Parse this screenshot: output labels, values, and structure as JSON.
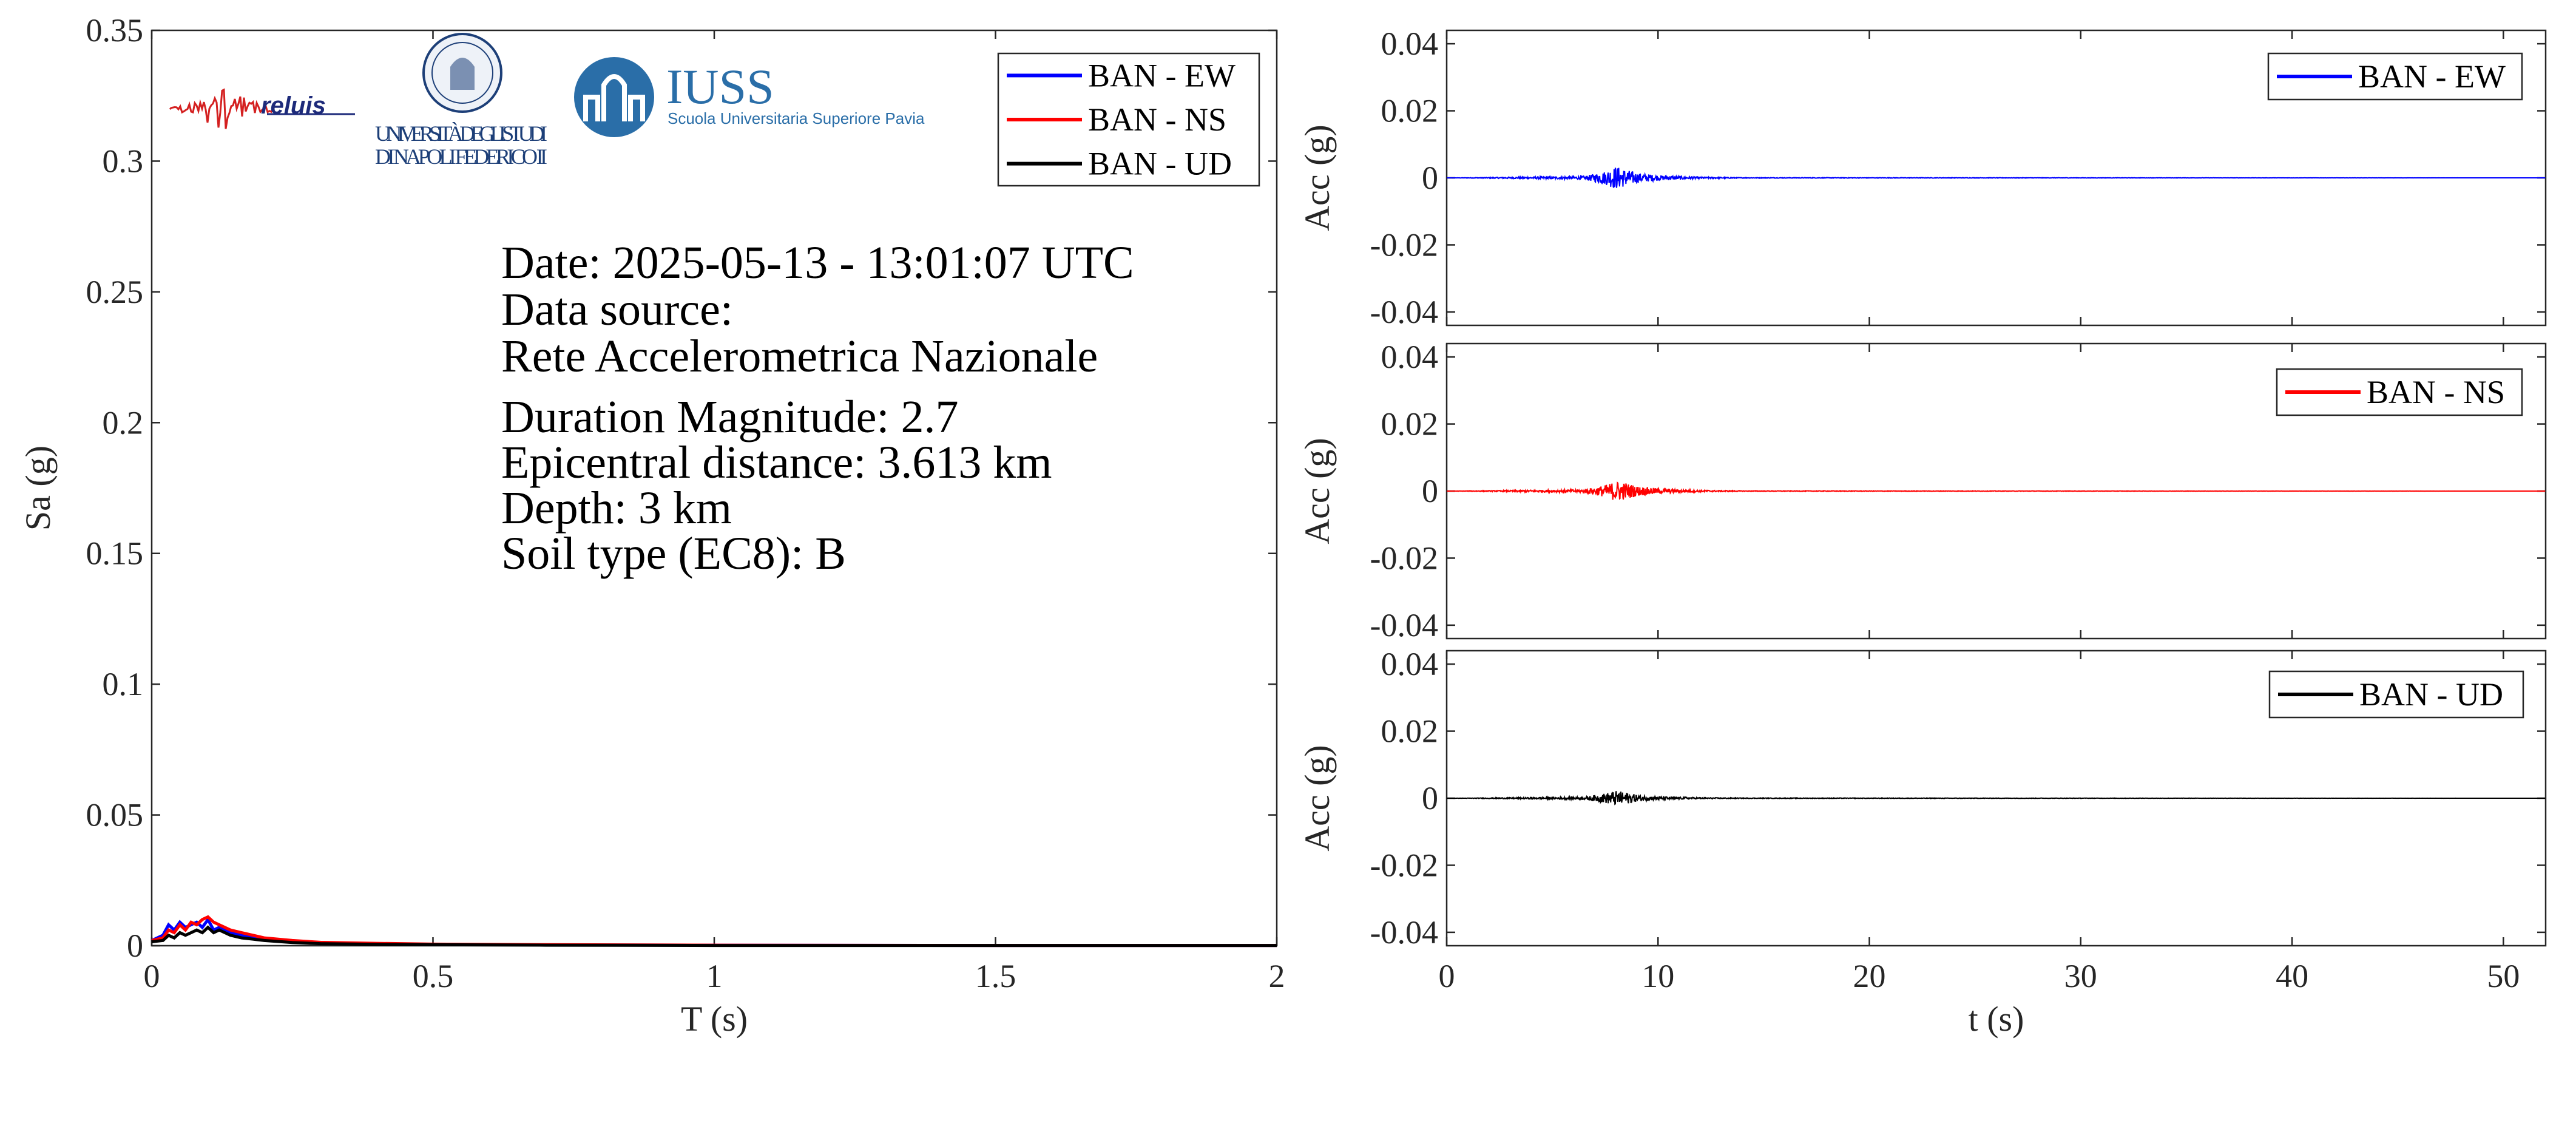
{
  "logos": {
    "reluis": "reluis",
    "unina_line1": "UNIVERSITÀ DEGLI STUDI",
    "unina_line2": "DI NAPOLI FEDERICO II",
    "iuss_name": "IUSS",
    "iuss_sub": "Scuola Universitaria Superiore Pavia"
  },
  "info": {
    "date": "Date: 2025-05-13 - 13:01:07 UTC",
    "source_label": "Data source:",
    "source_value": "Rete Accelerometrica Nazionale",
    "magnitude": "Duration Magnitude: 2.7",
    "distance": "Epicentral distance: 3.613 km",
    "depth": "Depth: 3 km",
    "soil": "Soil type (EC8): B"
  },
  "colors": {
    "ew": "#0000ff",
    "ns": "#ff0000",
    "ud": "#000000",
    "axis": "#262626"
  },
  "chart_data": [
    {
      "type": "line",
      "xlabel": "T (s)",
      "ylabel": "Sa (g)",
      "xlim": [
        0,
        2
      ],
      "ylim": [
        0,
        0.35
      ],
      "xticks": [
        0,
        0.5,
        1,
        1.5,
        2
      ],
      "xtick_labels": [
        "0",
        "0.5",
        "1",
        "1.5",
        "2"
      ],
      "yticks": [
        0,
        0.05,
        0.1,
        0.15,
        0.2,
        0.25,
        0.3,
        0.35
      ],
      "ytick_labels": [
        "0",
        "0.05",
        "0.1",
        "0.15",
        "0.2",
        "0.25",
        "0.3",
        "0.35"
      ],
      "legend_position": "top-right",
      "series": [
        {
          "name": "BAN - EW",
          "color": "#0000ff",
          "x": [
            0,
            0.02,
            0.03,
            0.04,
            0.05,
            0.06,
            0.07,
            0.08,
            0.09,
            0.1,
            0.11,
            0.12,
            0.14,
            0.16,
            0.18,
            0.2,
            0.25,
            0.3,
            0.4,
            0.5,
            0.7,
            1.0,
            1.5,
            2.0
          ],
          "y": [
            0.002,
            0.004,
            0.008,
            0.006,
            0.009,
            0.007,
            0.008,
            0.009,
            0.007,
            0.01,
            0.006,
            0.007,
            0.005,
            0.004,
            0.003,
            0.0025,
            0.0015,
            0.001,
            0.0007,
            0.0005,
            0.0003,
            0.0002,
            0.0001,
            0.0001
          ]
        },
        {
          "name": "BAN - NS",
          "color": "#ff0000",
          "x": [
            0,
            0.02,
            0.03,
            0.04,
            0.05,
            0.06,
            0.07,
            0.08,
            0.09,
            0.1,
            0.11,
            0.12,
            0.14,
            0.16,
            0.18,
            0.2,
            0.25,
            0.3,
            0.4,
            0.5,
            0.7,
            1.0,
            1.5,
            2.0
          ],
          "y": [
            0.002,
            0.003,
            0.006,
            0.005,
            0.008,
            0.006,
            0.009,
            0.008,
            0.01,
            0.011,
            0.009,
            0.008,
            0.006,
            0.005,
            0.004,
            0.003,
            0.002,
            0.0013,
            0.0009,
            0.0006,
            0.0004,
            0.0002,
            0.0001,
            0.0001
          ]
        },
        {
          "name": "BAN - UD",
          "color": "#000000",
          "x": [
            0,
            0.02,
            0.03,
            0.04,
            0.05,
            0.06,
            0.07,
            0.08,
            0.09,
            0.1,
            0.11,
            0.12,
            0.14,
            0.16,
            0.18,
            0.2,
            0.25,
            0.3,
            0.4,
            0.5,
            0.7,
            1.0,
            1.5,
            2.0
          ],
          "y": [
            0.0015,
            0.002,
            0.004,
            0.003,
            0.005,
            0.004,
            0.005,
            0.006,
            0.005,
            0.007,
            0.005,
            0.006,
            0.004,
            0.003,
            0.0025,
            0.002,
            0.0012,
            0.0008,
            0.0005,
            0.0004,
            0.0002,
            0.0001,
            0.0001,
            0.0001
          ]
        }
      ]
    },
    {
      "type": "line",
      "xlabel": "",
      "ylabel": "Acc (g)",
      "xlim": [
        0,
        52
      ],
      "ylim": [
        -0.044,
        0.044
      ],
      "xticks": [
        0,
        10,
        20,
        30,
        40,
        50
      ],
      "yticks": [
        -0.04,
        -0.02,
        0,
        0.02,
        0.04
      ],
      "ytick_labels": [
        "-0.04",
        "-0.02",
        "0",
        "0.02",
        "0.04"
      ],
      "legend_position": "top-right",
      "series": [
        {
          "name": "BAN - EW",
          "color": "#0000ff",
          "x": [
            0,
            6.5,
            7.5,
            8.0,
            8.5,
            9.0,
            10.0,
            12.0,
            14.0,
            52.0
          ],
          "y": [
            0,
            0.0005,
            0.002,
            0.0035,
            0.0025,
            0.0015,
            0.0008,
            0.0003,
            0.0001,
            0
          ]
        }
      ]
    },
    {
      "type": "line",
      "xlabel": "",
      "ylabel": "Acc (g)",
      "xlim": [
        0,
        52
      ],
      "ylim": [
        -0.044,
        0.044
      ],
      "xticks": [
        0,
        10,
        20,
        30,
        40,
        50
      ],
      "yticks": [
        -0.04,
        -0.02,
        0,
        0.02,
        0.04
      ],
      "ytick_labels": [
        "-0.04",
        "-0.02",
        "0",
        "0.02",
        "0.04"
      ],
      "legend_position": "top-right",
      "series": [
        {
          "name": "BAN - NS",
          "color": "#ff0000",
          "x": [
            0,
            6.5,
            7.5,
            8.0,
            8.5,
            9.0,
            10.0,
            12.0,
            14.0,
            52.0
          ],
          "y": [
            0,
            0.0005,
            0.0018,
            0.003,
            0.0025,
            0.0015,
            0.0008,
            0.0003,
            0.0001,
            0
          ]
        }
      ]
    },
    {
      "type": "line",
      "xlabel": "t (s)",
      "ylabel": "Acc (g)",
      "xlim": [
        0,
        52
      ],
      "ylim": [
        -0.044,
        0.044
      ],
      "xticks": [
        0,
        10,
        20,
        30,
        40,
        50
      ],
      "xtick_labels": [
        "0",
        "10",
        "20",
        "30",
        "40",
        "50"
      ],
      "yticks": [
        -0.04,
        -0.02,
        0,
        0.02,
        0.04
      ],
      "ytick_labels": [
        "-0.04",
        "-0.02",
        "0",
        "0.02",
        "0.04"
      ],
      "legend_position": "top-right",
      "series": [
        {
          "name": "BAN - UD",
          "color": "#000000",
          "x": [
            0,
            6.5,
            7.5,
            8.0,
            8.5,
            9.0,
            10.0,
            12.0,
            14.0,
            52.0
          ],
          "y": [
            0,
            0.0004,
            0.0015,
            0.0022,
            0.0018,
            0.001,
            0.0005,
            0.0002,
            0.0001,
            0
          ]
        }
      ]
    }
  ]
}
